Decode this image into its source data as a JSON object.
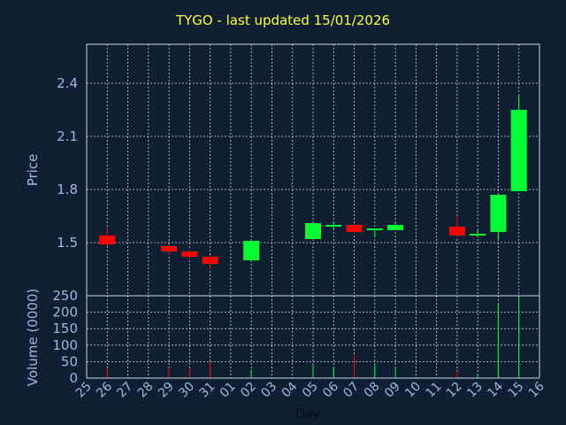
{
  "chart_data": {
    "type": "candlestick",
    "title": "TYGO - last updated 15/01/2026",
    "xlabel": "Day",
    "price_panel": {
      "ylabel": "Price",
      "yticks": [
        "1.5",
        "1.8",
        "2.1",
        "2.4"
      ],
      "ylim": [
        1.2,
        2.62
      ],
      "grid": true
    },
    "volume_panel": {
      "ylabel": "Volume (0000)",
      "yticks": [
        "0",
        "50",
        "100",
        "150",
        "200",
        "250"
      ],
      "ylim": [
        0,
        250
      ],
      "grid": true
    },
    "categories": [
      "25",
      "26",
      "27",
      "28",
      "29",
      "30",
      "31",
      "01",
      "02",
      "03",
      "04",
      "05",
      "06",
      "07",
      "08",
      "09",
      "10",
      "11",
      "12",
      "13",
      "14",
      "15",
      "16"
    ],
    "candles": [
      {
        "day": "26",
        "open": 1.54,
        "high": 1.58,
        "low": 1.48,
        "close": 1.49,
        "volume": 30
      },
      {
        "day": "29",
        "open": 1.48,
        "high": 1.49,
        "low": 1.43,
        "close": 1.45,
        "volume": 30
      },
      {
        "day": "30",
        "open": 1.45,
        "high": 1.46,
        "low": 1.41,
        "close": 1.42,
        "volume": 25
      },
      {
        "day": "31",
        "open": 1.42,
        "high": 1.43,
        "low": 1.35,
        "close": 1.38,
        "volume": 50
      },
      {
        "day": "02",
        "open": 1.4,
        "high": 1.51,
        "low": 1.39,
        "close": 1.51,
        "volume": 25
      },
      {
        "day": "05",
        "open": 1.52,
        "high": 1.61,
        "low": 1.52,
        "close": 1.61,
        "volume": 40
      },
      {
        "day": "06",
        "open": 1.59,
        "high": 1.62,
        "low": 1.58,
        "close": 1.6,
        "volume": 35
      },
      {
        "day": "07",
        "open": 1.6,
        "high": 1.61,
        "low": 1.55,
        "close": 1.56,
        "volume": 70
      },
      {
        "day": "08",
        "open": 1.57,
        "high": 1.58,
        "low": 1.53,
        "close": 1.58,
        "volume": 40
      },
      {
        "day": "09",
        "open": 1.57,
        "high": 1.61,
        "low": 1.57,
        "close": 1.6,
        "volume": 30
      },
      {
        "day": "12",
        "open": 1.59,
        "high": 1.65,
        "low": 1.53,
        "close": 1.54,
        "volume": 20
      },
      {
        "day": "13",
        "open": 1.54,
        "high": 1.57,
        "low": 1.53,
        "close": 1.55,
        "volume": 10
      },
      {
        "day": "14",
        "open": 1.56,
        "high": 1.77,
        "low": 1.52,
        "close": 1.77,
        "volume": 225
      },
      {
        "day": "15",
        "open": 1.79,
        "high": 2.33,
        "low": 1.79,
        "close": 2.25,
        "volume": 250
      }
    ],
    "colors": {
      "background": "#0f1f33",
      "up": "#00ff33",
      "down": "#ff0000",
      "axis_text": "#9fb8d9",
      "title": "#ffff33",
      "grid": "#c8d4e4"
    }
  }
}
